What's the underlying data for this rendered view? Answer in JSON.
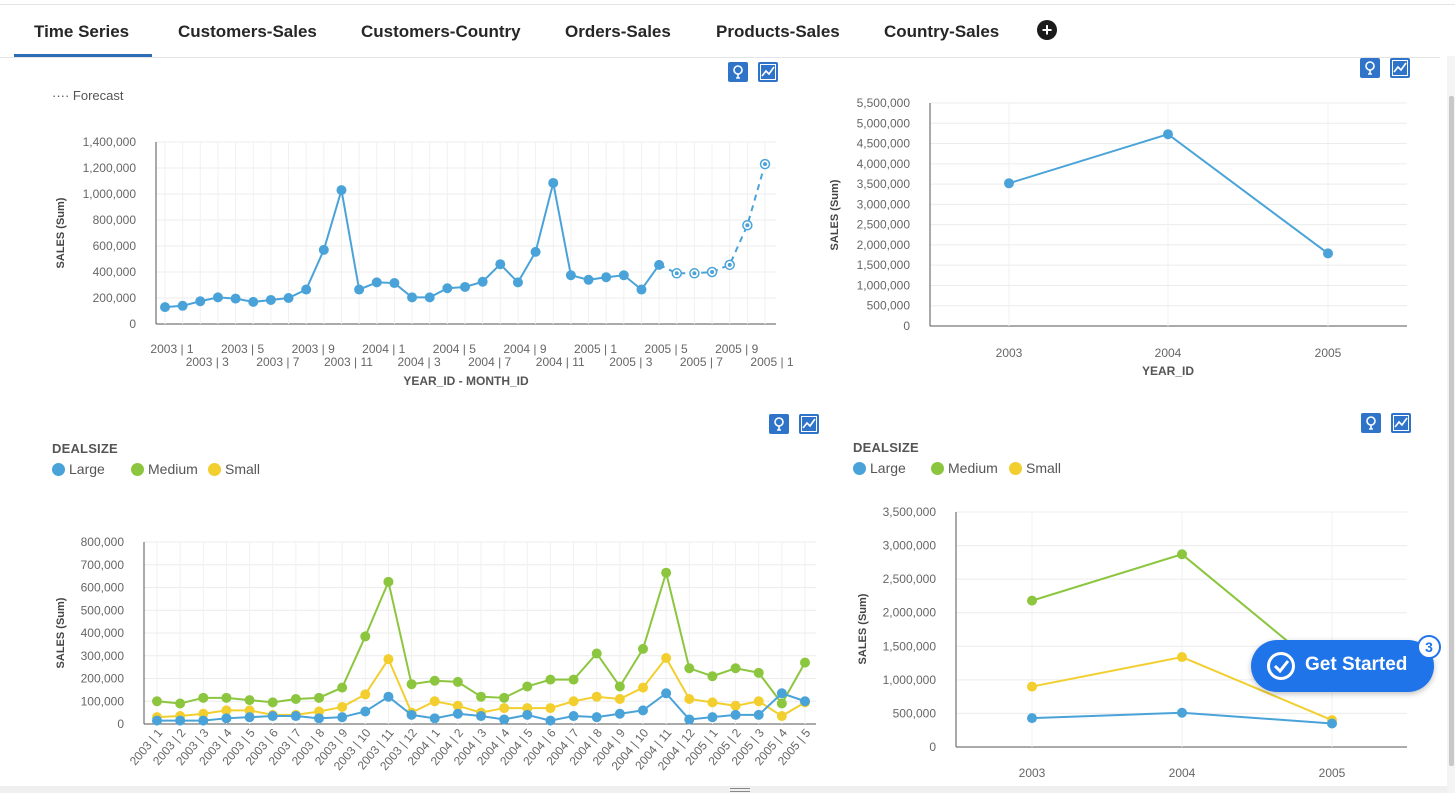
{
  "tabs": [
    {
      "label": "Time Series",
      "active": true
    },
    {
      "label": "Customers-Sales",
      "active": false
    },
    {
      "label": "Customers-Country",
      "active": false
    },
    {
      "label": "Orders-Sales",
      "active": false
    },
    {
      "label": "Products-Sales",
      "active": false
    },
    {
      "label": "Country-Sales",
      "active": false
    }
  ],
  "add_tab_icon": "plus-circle-icon",
  "tool_icons": [
    "lightbulb-icon",
    "line-chart-icon"
  ],
  "colors": {
    "accent": "#2f74c8",
    "large": "#4aa3d8",
    "medium": "#8cc63f",
    "small": "#f2cf2e",
    "tab_underline": "#2c6db5",
    "cta": "#1e74e8"
  },
  "forecast_legend": "···· Forecast",
  "deal_legend": {
    "title": "DEALSIZE",
    "items": [
      {
        "label": "Large",
        "color": "#4aa3d8"
      },
      {
        "label": "Medium",
        "color": "#8cc63f"
      },
      {
        "label": "Small",
        "color": "#f2cf2e"
      }
    ]
  },
  "get_started": {
    "label": "Get Started",
    "badge": "3",
    "icon": "check-circle-icon"
  },
  "chart_data": [
    {
      "id": "monthly-forecast",
      "type": "line",
      "xlabel": "YEAR_ID - MONTH_ID",
      "ylabel": "SALES (Sum)",
      "ylim": [
        0,
        1400000
      ],
      "y_ticks": [
        "0",
        "200,000",
        "400,000",
        "600,000",
        "800,000",
        "1,000,000",
        "1,200,000",
        "1,400,000"
      ],
      "x_tick_labels": [
        "2003 | 1",
        "2003 | 3",
        "2003 | 5",
        "2003 | 7",
        "2003 | 9",
        "2003 | 11",
        "2004 | 1",
        "2004 | 3",
        "2004 | 5",
        "2004 | 7",
        "2004 | 9",
        "2004 | 11",
        "2005 | 1",
        "2005 | 3",
        "2005 | 5",
        "2005 | 7",
        "2005 | 9",
        "2005 | 1"
      ],
      "legend": "Forecast (dotted)",
      "grid": true,
      "series": [
        {
          "values": [
            130000,
            140000,
            175000,
            205000,
            195000,
            170000,
            185000,
            200000,
            265000,
            570000,
            1030000,
            265000,
            320000,
            315000,
            205000,
            205000,
            275000,
            285000,
            325000,
            460000,
            320000,
            555000,
            1085000,
            375000,
            340000,
            360000,
            375000,
            265000,
            455000
          ]
        },
        {
          "forecast": true,
          "values": [
            455000,
            390000,
            390000,
            400000,
            455000,
            760000,
            1230000
          ]
        }
      ]
    },
    {
      "id": "yearly-total",
      "type": "line",
      "xlabel": "YEAR_ID",
      "ylabel": "SALES (Sum)",
      "categories": [
        "2003",
        "2004",
        "2005"
      ],
      "ylim": [
        0,
        5500000
      ],
      "y_ticks": [
        "0",
        "500,000",
        "1,000,000",
        "1,500,000",
        "2,000,000",
        "2,500,000",
        "3,000,000",
        "3,500,000",
        "4,000,000",
        "4,500,000",
        "5,000,000",
        "5,500,000"
      ],
      "grid": true,
      "values": [
        3520000,
        4730000,
        1790000
      ]
    },
    {
      "id": "monthly-dealsize",
      "type": "line",
      "ylabel": "SALES (Sum)",
      "ylim": [
        0,
        800000
      ],
      "y_ticks": [
        "0",
        "100,000",
        "200,000",
        "300,000",
        "400,000",
        "500,000",
        "600,000",
        "700,000",
        "800,000"
      ],
      "categories": [
        "2003 | 1",
        "2003 | 2",
        "2003 | 3",
        "2003 | 4",
        "2003 | 5",
        "2003 | 6",
        "2003 | 7",
        "2003 | 8",
        "2003 | 9",
        "2003 | 10",
        "2003 | 11",
        "2003 | 12",
        "2004 | 1",
        "2004 | 2",
        "2004 | 3",
        "2004 | 4",
        "2004 | 5",
        "2004 | 6",
        "2004 | 7",
        "2004 | 8",
        "2004 | 9",
        "2004 | 10",
        "2004 | 11",
        "2004 | 12",
        "2005 | 1",
        "2005 | 2",
        "2005 | 3",
        "2005 | 4",
        "2005 | 5"
      ],
      "grid": true,
      "series": [
        {
          "name": "Large",
          "color": "#4aa3d8",
          "values": [
            15000,
            15000,
            15000,
            25000,
            30000,
            35000,
            35000,
            25000,
            30000,
            55000,
            120000,
            40000,
            25000,
            45000,
            35000,
            20000,
            40000,
            15000,
            35000,
            30000,
            45000,
            60000,
            135000,
            20000,
            30000,
            40000,
            40000,
            135000,
            100000
          ]
        },
        {
          "name": "Medium",
          "color": "#8cc63f",
          "values": [
            100000,
            90000,
            115000,
            115000,
            105000,
            95000,
            110000,
            115000,
            160000,
            385000,
            625000,
            175000,
            190000,
            185000,
            120000,
            115000,
            165000,
            195000,
            195000,
            310000,
            165000,
            330000,
            665000,
            245000,
            210000,
            245000,
            225000,
            90000,
            270000
          ]
        },
        {
          "name": "Small",
          "color": "#f2cf2e",
          "values": [
            30000,
            35000,
            45000,
            60000,
            60000,
            40000,
            40000,
            55000,
            75000,
            130000,
            285000,
            50000,
            100000,
            80000,
            50000,
            70000,
            70000,
            70000,
            100000,
            120000,
            110000,
            160000,
            290000,
            110000,
            95000,
            80000,
            100000,
            35000,
            95000
          ]
        }
      ]
    },
    {
      "id": "yearly-dealsize",
      "type": "line",
      "ylabel": "SALES (Sum)",
      "categories": [
        "2003",
        "2004",
        "2005"
      ],
      "ylim": [
        0,
        3500000
      ],
      "y_ticks": [
        "0",
        "500,000",
        "1,000,000",
        "1,500,000",
        "2,000,000",
        "2,500,000",
        "3,000,000",
        "3,500,000"
      ],
      "grid": true,
      "series": [
        {
          "name": "Large",
          "color": "#4aa3d8",
          "values": [
            430000,
            510000,
            350000
          ]
        },
        {
          "name": "Medium",
          "color": "#8cc63f",
          "values": [
            2180000,
            2870000,
            1030000
          ]
        },
        {
          "name": "Small",
          "color": "#f2cf2e",
          "values": [
            900000,
            1340000,
            400000
          ]
        }
      ]
    }
  ]
}
